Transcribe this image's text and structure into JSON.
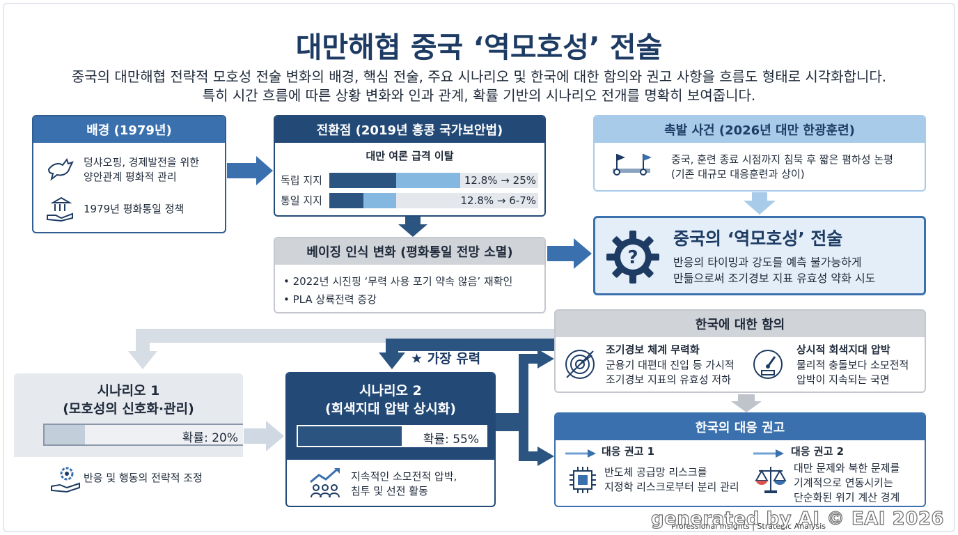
{
  "title": "대만해협 중국 ‘역모호성’ 전술",
  "subtitle": [
    "중국의 대만해협 전략적 모호성 전술 변화의 배경, 핵심 전술, 주요 시나리오 및 한국에 대한 함의와 권고 사항을 흐름도 형태로 시각화합니다.",
    "특히 시간 흐름에 따른 상황 변화와 인과 관계, 확률 기반의 시나리오 전개를 명확히 보여줍니다."
  ],
  "background": {
    "header": "배경 (1979년)",
    "items": [
      {
        "icon": "dove-icon",
        "text": "덩샤오핑, 경제발전을 위한\n양안관계 평화적 관리"
      },
      {
        "icon": "institution-hand-icon",
        "text": "1979년 평화통일 정책"
      }
    ]
  },
  "turning_point": {
    "header": "전환점 (2019년 홍콩 국가보안법)",
    "subheader": "대만 여론 급격 이탈",
    "bars": [
      {
        "label": "독립 지지",
        "value_text": "12.8% → 25%",
        "from": 12.8,
        "to": 25
      },
      {
        "label": "통일 지지",
        "value_text": "12.8% → 6-7%",
        "from": 12.8,
        "to": 6.5
      }
    ]
  },
  "trigger": {
    "header": "촉발 사건 (2026년 대만 한광훈련)",
    "icon": "flag-route-icon",
    "text": "중국, 훈련 종료 시점까지 침묵 후 짧은 폄하성 논평\n(기존 대규모 대응훈련과 상이)"
  },
  "beijing": {
    "header": "베이징 인식 변화 (평화통일 전망 소멸)",
    "items": [
      "• 2022년 시진핑 ‘무력 사용 포기 약속 않음’ 재확인",
      "• PLA 상륙전력 증강"
    ]
  },
  "core": {
    "icon": "gear-question-icon",
    "title": "중국의 ‘역모호성’ 전술",
    "text": "반응의 타이밍과 강도를 예측 불가능하게\n만듦으로써 조기경보 지표 유효성 약화 시도"
  },
  "most_likely": "★ 가장 유력",
  "scenario1": {
    "title": "시나리오 1\n(모호성의 신호화·관리)",
    "prob_label": "확률: 20%",
    "probability": 0.2,
    "icon": "hand-gear-icon",
    "text": "반응 및 행동의 전략적 조정"
  },
  "scenario2": {
    "title": "시나리오 2\n(회색지대 압박 상시화)",
    "prob_label": "확률: 55%",
    "probability": 0.55,
    "icon": "people-chart-icon",
    "text": "지속적인 소모전적 압박,\n침투 및 선전 활동"
  },
  "implications": {
    "header": "한국에 대한 함의",
    "items": [
      {
        "icon": "radar-icon",
        "title": "조기경보 체계 무력화",
        "text": "군용기 대편대 진입 등 가시적\n조기경보 지표의 유효성 저하"
      },
      {
        "icon": "gauge-icon",
        "title": "상시적 회색지대 압박",
        "text": "물리적 충돌보다 소모전적\n압박이 지속되는 국면"
      }
    ]
  },
  "recommendations": {
    "header": "한국의 대응 권고",
    "items": [
      {
        "icon": "chip-icon",
        "title": "대응 권고 1",
        "text": "반도체 공급망 리스크를\n지정학 리스크로부터 분리 관리"
      },
      {
        "icon": "scale-icon",
        "title": "대응 권고 2",
        "text": "대만 문제와 북한 문제를\n기계적으로 연동시키는\n단순화된 위기 계산 경계"
      }
    ]
  },
  "footer_small": "Professional Insights | Strategic Analysis",
  "watermark": "generated by AI © EAI 2026",
  "colors": {
    "navy": "#234a77",
    "blue": "#3a70ad",
    "light_blue": "#a8cbea",
    "grey": "#d0d3d8"
  }
}
